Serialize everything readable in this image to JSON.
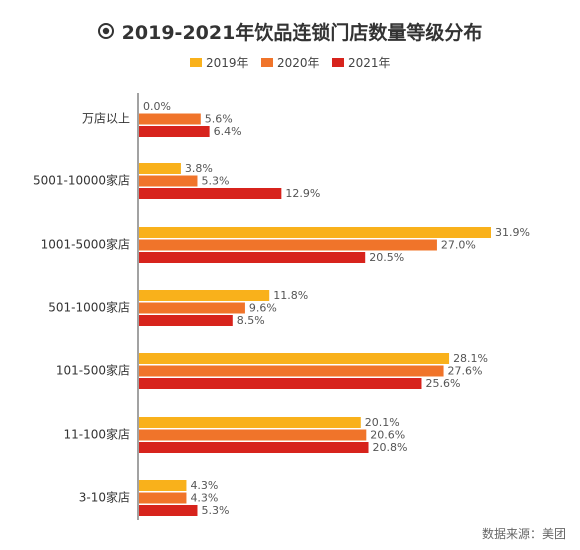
{
  "colors": {
    "series": [
      "#F9B11B",
      "#F0742A",
      "#D7231C"
    ],
    "axis": "#444444",
    "label": "#555555"
  },
  "chart_data": {
    "type": "bar",
    "orientation": "horizontal",
    "title": "2019-2021年饮品连锁门店数量等级分布",
    "categories": [
      "万店以上",
      "5001-10000家店",
      "1001-5000家店",
      "501-1000家店",
      "101-500家店",
      "11-100家店",
      "3-10家店"
    ],
    "series": [
      {
        "name": "2019年",
        "values": [
          0.0,
          3.8,
          31.9,
          11.8,
          28.1,
          20.1,
          4.3
        ],
        "labels": [
          "0.0%",
          "3.8%",
          "31.9%",
          "11.8%",
          "28.1%",
          "20.1%",
          "4.3%"
        ]
      },
      {
        "name": "2020年",
        "values": [
          5.6,
          5.3,
          27.0,
          9.6,
          27.6,
          20.6,
          4.3
        ],
        "labels": [
          "5.6%",
          "5.3%",
          "27.0%",
          "9.6%",
          "27.6%",
          "20.6%",
          "4.3%"
        ]
      },
      {
        "name": "2021年",
        "values": [
          6.4,
          12.9,
          20.5,
          8.5,
          25.6,
          20.8,
          5.3
        ],
        "labels": [
          "6.4%",
          "12.9%",
          "20.5%",
          "8.5%",
          "25.6%",
          "20.8%",
          "5.3%"
        ]
      }
    ],
    "xlim": [
      0,
      31.9
    ],
    "legend_position": "top",
    "grid": false
  },
  "source_text": "数据来源：美团",
  "title_icon": "target-icon"
}
